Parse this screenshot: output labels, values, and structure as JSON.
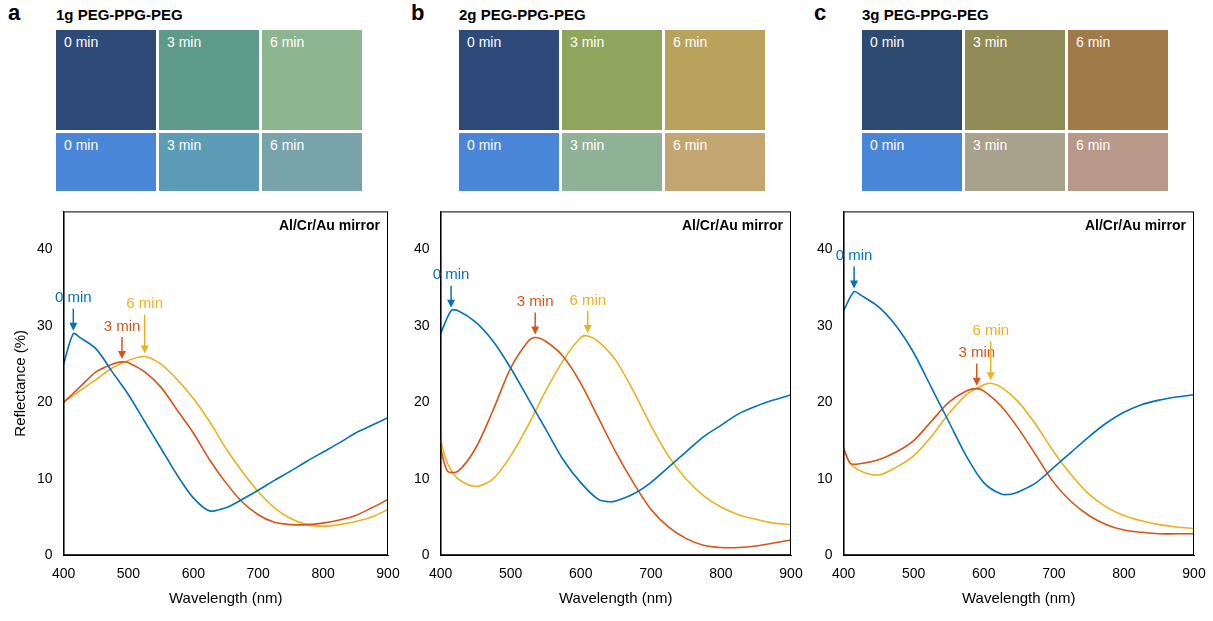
{
  "chart_data": [
    {
      "panel": "a",
      "title": "1g PEG-PPG-PEG",
      "type": "line",
      "photos": [
        {
          "label": "0 min",
          "color": "#2e4a78"
        },
        {
          "label": "3 min",
          "color": "#5e9a8a"
        },
        {
          "label": "6 min",
          "color": "#8db590"
        }
      ],
      "swatches": [
        {
          "label": "0 min",
          "color": "#4a86d8"
        },
        {
          "label": "3 min",
          "color": "#5c9cb7"
        },
        {
          "label": "6 min",
          "color": "#78a3ab"
        }
      ],
      "annotation": "Al/Cr/Au mirror",
      "x_label": "Wavelength (nm)",
      "y_label": "Reflectance (%)",
      "xlim": [
        400,
        900
      ],
      "xticks": [
        400,
        500,
        600,
        700,
        800,
        900
      ],
      "ylim": [
        0,
        45
      ],
      "yticks": [
        0,
        10,
        20,
        30,
        40
      ],
      "grid": false,
      "series": [
        {
          "name": "0 min",
          "color": "#0072bd",
          "arrow_at": 415,
          "x": [
            400,
            415,
            425,
            450,
            475,
            500,
            525,
            550,
            575,
            600,
            625,
            650,
            675,
            700,
            725,
            750,
            775,
            800,
            825,
            850,
            875,
            900
          ],
          "values": [
            25,
            29,
            28.5,
            27,
            24,
            21,
            17.5,
            14,
            10.5,
            7.5,
            5.8,
            6.2,
            7.3,
            8.5,
            9.8,
            11,
            12.3,
            13.5,
            14.7,
            16,
            17,
            18
          ]
        },
        {
          "name": "3 min",
          "color": "#d95319",
          "arrow_at": 490,
          "x": [
            400,
            425,
            450,
            475,
            490,
            500,
            525,
            550,
            575,
            600,
            625,
            650,
            675,
            700,
            725,
            750,
            775,
            800,
            825,
            850,
            875,
            900
          ],
          "values": [
            20,
            22,
            24,
            25,
            25.3,
            25.2,
            24,
            22,
            19,
            16,
            12.5,
            9.5,
            7,
            5.3,
            4.3,
            4,
            4,
            4.2,
            4.6,
            5.2,
            6.2,
            7.3
          ]
        },
        {
          "name": "6 min",
          "color": "#edb120",
          "arrow_at": 525,
          "x": [
            400,
            425,
            450,
            475,
            500,
            525,
            550,
            575,
            600,
            625,
            650,
            675,
            700,
            725,
            750,
            775,
            800,
            825,
            850,
            875,
            900
          ],
          "values": [
            20,
            21.5,
            23,
            24.5,
            25.5,
            26,
            25,
            23,
            20.5,
            17.5,
            14,
            11,
            8.3,
            6.2,
            4.8,
            4,
            3.8,
            4,
            4.4,
            5,
            6
          ]
        }
      ]
    },
    {
      "panel": "b",
      "title": "2g PEG-PPG-PEG",
      "type": "line",
      "photos": [
        {
          "label": "0 min",
          "color": "#2e4a7a"
        },
        {
          "label": "3 min",
          "color": "#8fa55e"
        },
        {
          "label": "6 min",
          "color": "#b8a25c"
        }
      ],
      "swatches": [
        {
          "label": "0 min",
          "color": "#4a86d8"
        },
        {
          "label": "3 min",
          "color": "#8fb196"
        },
        {
          "label": "6 min",
          "color": "#c3a571"
        }
      ],
      "annotation": "Al/Cr/Au mirror",
      "x_label": "Wavelength (nm)",
      "xlim": [
        400,
        900
      ],
      "xticks": [
        400,
        500,
        600,
        700,
        800,
        900
      ],
      "ylim": [
        0,
        45
      ],
      "yticks": [
        0,
        10,
        20,
        30,
        40
      ],
      "grid": false,
      "series": [
        {
          "name": "0 min",
          "color": "#0072bd",
          "arrow_at": 415,
          "x": [
            400,
            415,
            425,
            450,
            475,
            500,
            525,
            550,
            575,
            600,
            625,
            640,
            650,
            675,
            700,
            725,
            750,
            775,
            800,
            825,
            850,
            875,
            900
          ],
          "values": [
            29,
            32,
            32,
            30.5,
            28,
            24.5,
            20.5,
            16.5,
            12.5,
            9.5,
            7.3,
            7,
            7.1,
            8,
            9.5,
            11.5,
            13.5,
            15.5,
            17,
            18.5,
            19.5,
            20.3,
            21
          ]
        },
        {
          "name": "3 min",
          "color": "#d95319",
          "arrow_at": 535,
          "x": [
            400,
            410,
            425,
            450,
            475,
            500,
            525,
            535,
            550,
            575,
            600,
            625,
            650,
            675,
            700,
            725,
            750,
            775,
            800,
            825,
            850,
            875,
            900
          ],
          "values": [
            14,
            11,
            11,
            14,
            19,
            24.5,
            28,
            28.5,
            28,
            26,
            22.5,
            18,
            13.5,
            9.5,
            6,
            3.7,
            2.2,
            1.3,
            1,
            1,
            1.2,
            1.6,
            2
          ]
        },
        {
          "name": "6 min",
          "color": "#edb120",
          "arrow_at": 610,
          "x": [
            400,
            410,
            425,
            450,
            475,
            500,
            525,
            550,
            575,
            600,
            610,
            625,
            650,
            675,
            700,
            725,
            750,
            775,
            800,
            825,
            850,
            875,
            900
          ],
          "values": [
            15,
            12,
            10,
            9,
            10,
            13,
            17,
            21.5,
            25.5,
            28.5,
            28.7,
            28,
            25.5,
            21.5,
            17,
            13,
            10,
            7.8,
            6.3,
            5.3,
            4.7,
            4.2,
            4
          ]
        }
      ]
    },
    {
      "panel": "c",
      "title": "3g PEG-PPG-PEG",
      "type": "line",
      "photos": [
        {
          "label": "0 min",
          "color": "#2d4a70"
        },
        {
          "label": "3 min",
          "color": "#8f8a56"
        },
        {
          "label": "6 min",
          "color": "#a07a48"
        }
      ],
      "swatches": [
        {
          "label": "0 min",
          "color": "#4a86d8"
        },
        {
          "label": "3 min",
          "color": "#a8a18c"
        },
        {
          "label": "6 min",
          "color": "#b89888"
        }
      ],
      "annotation": "Al/Cr/Au mirror",
      "x_label": "Wavelength (nm)",
      "xlim": [
        400,
        900
      ],
      "xticks": [
        400,
        500,
        600,
        700,
        800,
        900
      ],
      "ylim": [
        0,
        45
      ],
      "yticks": [
        0,
        10,
        20,
        30,
        40
      ],
      "grid": false,
      "series": [
        {
          "name": "0 min",
          "color": "#0072bd",
          "arrow_at": 415,
          "x": [
            400,
            415,
            425,
            450,
            475,
            500,
            525,
            550,
            575,
            600,
            625,
            640,
            650,
            675,
            700,
            725,
            750,
            775,
            800,
            825,
            850,
            875,
            900
          ],
          "values": [
            32,
            34.5,
            34,
            32.5,
            30,
            26.5,
            22,
            17.5,
            13,
            9.5,
            8,
            8,
            8.3,
            9.5,
            11.5,
            13.5,
            15.5,
            17.3,
            18.7,
            19.7,
            20.3,
            20.7,
            21
          ]
        },
        {
          "name": "3 min",
          "color": "#d95319",
          "arrow_at": 590,
          "x": [
            400,
            410,
            425,
            450,
            475,
            500,
            525,
            550,
            575,
            590,
            600,
            625,
            650,
            675,
            700,
            725,
            750,
            775,
            800,
            825,
            850,
            875,
            900
          ],
          "values": [
            14,
            12,
            12,
            12.5,
            13.5,
            15,
            17.5,
            20,
            21.5,
            21.8,
            21.5,
            19.5,
            16.5,
            13,
            9.5,
            7,
            5.2,
            4,
            3.3,
            3,
            2.8,
            2.8,
            2.8
          ]
        },
        {
          "name": "6 min",
          "color": "#edb120",
          "arrow_at": 610,
          "x": [
            400,
            410,
            425,
            450,
            475,
            500,
            525,
            550,
            575,
            600,
            610,
            625,
            650,
            675,
            700,
            725,
            750,
            775,
            800,
            825,
            850,
            875,
            900
          ],
          "values": [
            14,
            12,
            11,
            10.5,
            11.5,
            13,
            15.5,
            18.5,
            21,
            22.3,
            22.5,
            22,
            20,
            17,
            13.5,
            10.5,
            8,
            6.3,
            5.2,
            4.5,
            4,
            3.7,
            3.5
          ]
        }
      ]
    }
  ]
}
